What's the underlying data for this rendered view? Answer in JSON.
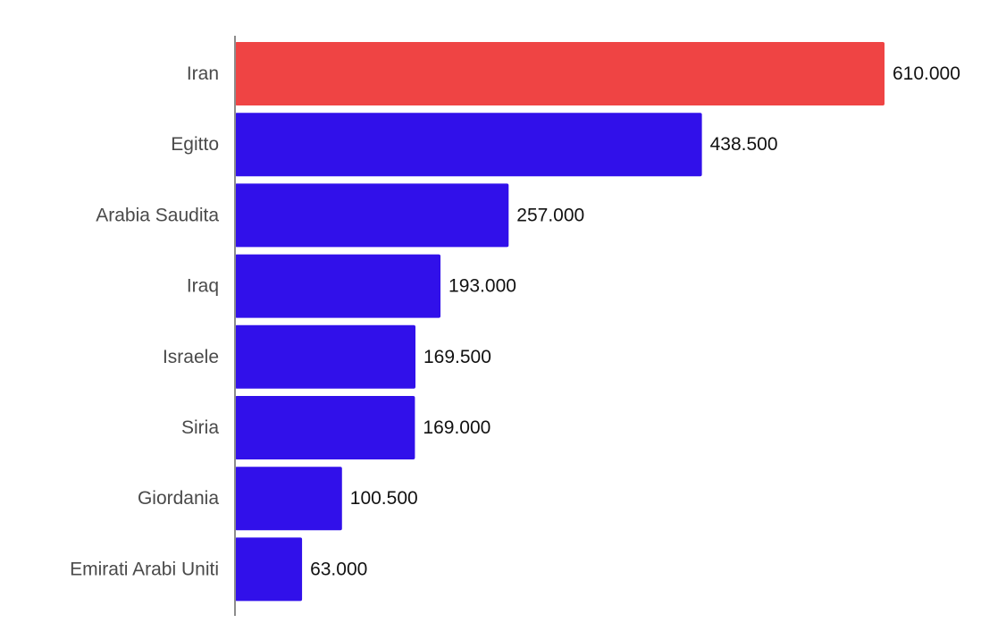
{
  "chart_data": {
    "type": "bar",
    "orientation": "horizontal",
    "categories": [
      "Iran",
      "Egitto",
      "Arabia Saudita",
      "Iraq",
      "Israele",
      "Siria",
      "Giordania",
      "Emirati Arabi Uniti"
    ],
    "values": [
      610000,
      438500,
      257000,
      193000,
      169500,
      169000,
      100500,
      63000
    ],
    "value_labels": [
      "610.000",
      "438.500",
      "257.000",
      "193.000",
      "169.500",
      "169.000",
      "100.500",
      "63.000"
    ],
    "highlight_index": 0,
    "colors": {
      "default": "#3110EA",
      "highlight": "#EF4444",
      "axis": "#8c8c8c"
    },
    "title": "",
    "xlabel": "",
    "ylabel": "",
    "xlim": [
      0,
      610000
    ],
    "grid": false,
    "legend": "none"
  }
}
